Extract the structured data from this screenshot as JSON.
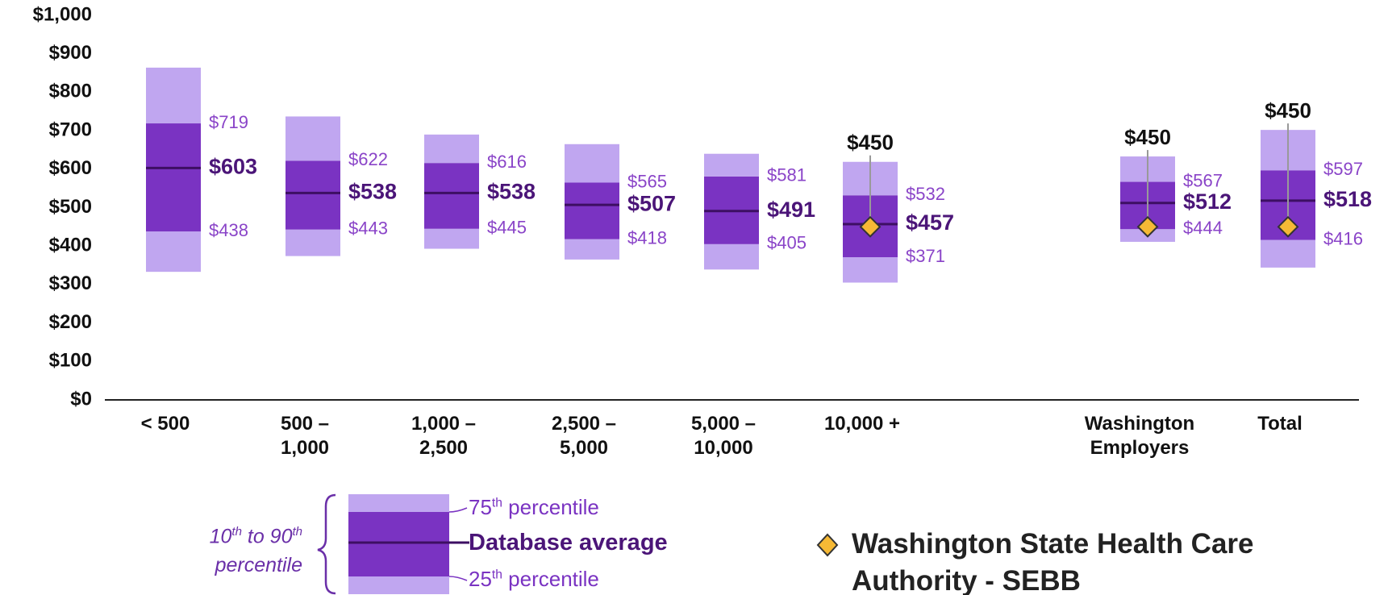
{
  "chart_data": {
    "type": "percentile-bar",
    "categories": [
      "< 500",
      "500 –\n1,000",
      "1,000 –\n2,500",
      "2,500 –\n5,000",
      "5,000 –\n10,000",
      "10,000 +",
      "Washington\nEmployers",
      "Total"
    ],
    "ylim": [
      0,
      1000
    ],
    "yticks": [
      {
        "value": 0,
        "label": "$0"
      },
      {
        "value": 100,
        "label": "$100"
      },
      {
        "value": 200,
        "label": "$200"
      },
      {
        "value": 300,
        "label": "$300"
      },
      {
        "value": 400,
        "label": "$400"
      },
      {
        "value": 500,
        "label": "$500"
      },
      {
        "value": 600,
        "label": "$600"
      },
      {
        "value": 700,
        "label": "$700"
      },
      {
        "value": 800,
        "label": "$800"
      },
      {
        "value": 900,
        "label": "$900"
      },
      {
        "value": 1000,
        "label": "$1,000"
      }
    ],
    "p10": {
      "values": [
        333,
        374,
        393,
        365,
        339,
        305,
        411,
        344
      ],
      "color": "#c0a6f0"
    },
    "p25": {
      "values": [
        438,
        443,
        445,
        418,
        405,
        371,
        444,
        416
      ],
      "value_labels": [
        "$438",
        "$443",
        "$445",
        "$418",
        "$405",
        "$371",
        "$444",
        "$416"
      ]
    },
    "mean": {
      "values": [
        603,
        538,
        538,
        507,
        491,
        457,
        512,
        518
      ],
      "value_labels": [
        "$603",
        "$538",
        "$538",
        "$507",
        "$491",
        "$457",
        "$512",
        "$518"
      ],
      "color": "#3d0f63"
    },
    "p75": {
      "values": [
        719,
        622,
        616,
        565,
        581,
        532,
        567,
        597
      ],
      "value_labels": [
        "$719",
        "$622",
        "$616",
        "$565",
        "$581",
        "$532",
        "$567",
        "$597"
      ],
      "color": "#7a33c2"
    },
    "p90": {
      "values": [
        864,
        737,
        690,
        665,
        640,
        619,
        633,
        702
      ],
      "color": "#c0a6f0"
    },
    "sebb": {
      "name": "Washington State Health Care Authority - SEBB",
      "color": "#f6b935",
      "values": [
        null,
        null,
        null,
        null,
        null,
        450,
        450,
        450
      ],
      "value_labels": [
        null,
        null,
        null,
        null,
        null,
        "$450",
        "$450",
        "$450"
      ]
    },
    "legend": {
      "range": [
        {
          "text": "10"
        },
        {
          "text": "th",
          "sup": true
        },
        {
          "text": " to 90"
        },
        {
          "text": "th",
          "sup": true
        },
        {
          "text": " percentile"
        }
      ],
      "p75": [
        {
          "text": "75"
        },
        {
          "text": "th",
          "sup": true
        },
        {
          "text": " percentile"
        }
      ],
      "mean": "Database average",
      "p25": [
        {
          "text": "25"
        },
        {
          "text": "th",
          "sup": true
        },
        {
          "text": " percentile"
        }
      ]
    }
  }
}
